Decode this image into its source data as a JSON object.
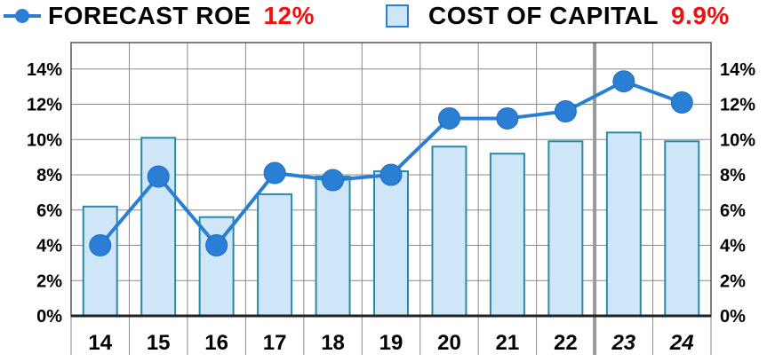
{
  "legend": {
    "roe_label": "FORECAST ROE",
    "roe_value": "12%",
    "coc_label": "COST OF CAPITAL",
    "coc_value": "9.9%"
  },
  "colors": {
    "line": "#2a7fd4",
    "bar_fill": "#cfe5f8",
    "bar_stroke": "#2a8aa6",
    "value_text": "#ee1111",
    "grid": "#8a8a8a"
  },
  "chart_data": {
    "type": "bar",
    "categories": [
      "14",
      "15",
      "16",
      "17",
      "18",
      "19",
      "20",
      "21",
      "22",
      "23",
      "24"
    ],
    "italic_categories": [
      "23",
      "24"
    ],
    "series": [
      {
        "name": "COST OF CAPITAL",
        "type": "bar",
        "values": [
          6.2,
          10.1,
          5.6,
          6.9,
          7.9,
          8.2,
          9.6,
          9.2,
          9.9,
          10.4,
          9.9
        ]
      },
      {
        "name": "FORECAST ROE",
        "type": "line",
        "values": [
          4.0,
          7.9,
          4.0,
          8.1,
          7.7,
          8.0,
          11.2,
          11.2,
          11.6,
          13.3,
          12.1
        ]
      }
    ],
    "yticks": [
      "0%",
      "2%",
      "4%",
      "6%",
      "8%",
      "10%",
      "12%",
      "14%"
    ],
    "ylim": [
      0,
      15.5
    ],
    "grid": true,
    "dual_axis_labels": true,
    "legend_position": "top"
  }
}
